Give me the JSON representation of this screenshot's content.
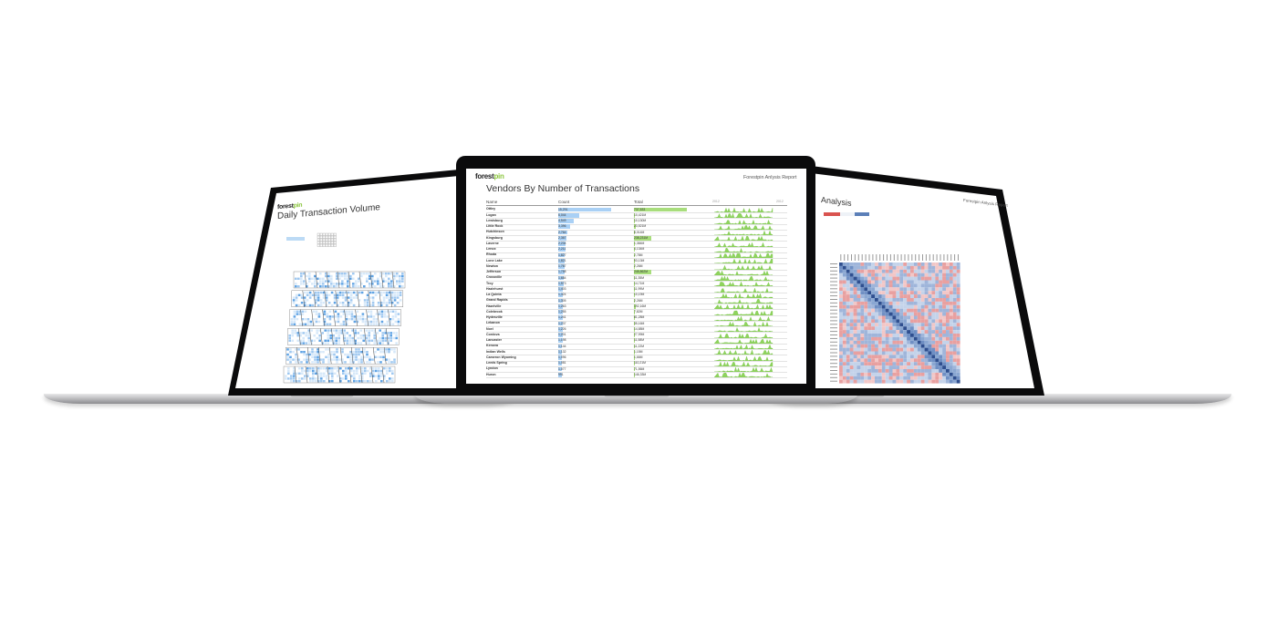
{
  "center": {
    "logo": {
      "part1": "forest",
      "part2": "pin"
    },
    "title": "Vendors By Number of Transactions",
    "report_label": "Forestpin Anlysis Report",
    "columns": {
      "name": "Name",
      "count": "Count",
      "total": "Total"
    },
    "spark_range": {
      "start": "2012",
      "end": "2012"
    },
    "rows": [
      {
        "name": "Ottley",
        "count": "15,291",
        "total": "737,533",
        "count_frac": 0.97,
        "total_frac": 0.04
      },
      {
        "name": "Logan",
        "count": "6,044",
        "total": "10,421M",
        "count_frac": 0.38,
        "total_frac": 0.03
      },
      {
        "name": "Lewisburg",
        "count": "4,549",
        "total": "10,130M",
        "count_frac": 0.28,
        "total_frac": 0.03
      },
      {
        "name": "Little Rock",
        "count": "3,396",
        "total": "23,521M",
        "count_frac": 0.2,
        "total_frac": 0.03
      },
      {
        "name": "Hutchinson",
        "count": "2,764",
        "total": "8,014M",
        "count_frac": 0.0,
        "total_frac": 0.0
      },
      {
        "name": "Kingsburg",
        "count": "2,367",
        "total": "238,231M",
        "count_frac": 0.0,
        "total_frac": 0.0
      },
      {
        "name": "Laverne",
        "count": "2,234",
        "total": "1,384M",
        "count_frac": 0.0,
        "total_frac": 0.0
      },
      {
        "name": "Lenox",
        "count": "2,211",
        "total": "4,134M",
        "count_frac": 0.0,
        "total_frac": 0.0
      },
      {
        "name": "Rhoda",
        "count": "1,827",
        "total": "2,78M",
        "count_frac": 0.0,
        "total_frac": 0.0
      },
      {
        "name": "Lone Lake",
        "count": "1,821",
        "total": "93,13M",
        "count_frac": 0.0,
        "total_frac": 0.0
      },
      {
        "name": "Newton",
        "count": "1,767",
        "total": "2,26M",
        "count_frac": 0.0,
        "total_frac": 0.0
      },
      {
        "name": "Jefferson",
        "count": "1,758",
        "total": "245,862M",
        "count_frac": 0.0,
        "total_frac": 0.0
      },
      {
        "name": "Crossville",
        "count": "1,684",
        "total": "11,35M",
        "count_frac": 0.0,
        "total_frac": 0.0
      },
      {
        "name": "Troy",
        "count": "1,573",
        "total": "14,71M",
        "count_frac": 0.0,
        "total_frac": 0.0
      },
      {
        "name": "Hazlehurst",
        "count": "1,403",
        "total": "11,99M",
        "count_frac": 0.0,
        "total_frac": 0.0
      },
      {
        "name": "La Quinta",
        "count": "1,324",
        "total": "10,19M",
        "count_frac": 0.0,
        "total_frac": 0.0
      },
      {
        "name": "Grand Rapids",
        "count": "1,305",
        "total": "2,26M",
        "count_frac": 0.0,
        "total_frac": 0.0
      },
      {
        "name": "Hazelville",
        "count": "1,263",
        "total": "192,16M",
        "count_frac": 0.0,
        "total_frac": 0.0
      },
      {
        "name": "Colebrook",
        "count": "1,255",
        "total": "7,82M",
        "count_frac": 0.0,
        "total_frac": 0.0
      },
      {
        "name": "Hydesville",
        "count": "1,241",
        "total": "81,28M",
        "count_frac": 0.0,
        "total_frac": 0.0
      },
      {
        "name": "Lebanon",
        "count": "1,237",
        "total": "35,16M",
        "count_frac": 0.0,
        "total_frac": 0.0
      },
      {
        "name": "Noel",
        "count": "1,226",
        "total": "14,88M",
        "count_frac": 0.0,
        "total_frac": 0.0
      },
      {
        "name": "Cordova",
        "count": "1,201",
        "total": "27,99M",
        "count_frac": 0.0,
        "total_frac": 0.0
      },
      {
        "name": "Lancaster",
        "count": "1,198",
        "total": "11,58M",
        "count_frac": 0.0,
        "total_frac": 0.0
      },
      {
        "name": "Kenova",
        "count": "1,144",
        "total": "11,22M",
        "count_frac": 0.0,
        "total_frac": 0.0
      },
      {
        "name": "Indian Wells",
        "count": "1,132",
        "total": "1,15M",
        "count_frac": 0.0,
        "total_frac": 0.0
      },
      {
        "name": "Cameron Wyoming",
        "count": "1,096",
        "total": "1,66M",
        "count_frac": 0.0,
        "total_frac": 0.0
      },
      {
        "name": "Leeds Spring",
        "count": "1,081",
        "total": "110,21M",
        "count_frac": 0.0,
        "total_frac": 0.0
      },
      {
        "name": "Lyndon",
        "count": "1,077",
        "total": "71,56M",
        "count_frac": 0.0,
        "total_frac": 0.0
      },
      {
        "name": "Huron",
        "count": "991",
        "total": "146,33M",
        "count_frac": 0.0,
        "total_frac": 0.0
      }
    ],
    "accent_count": "#a9d0f5",
    "accent_total": "#a8dd7c"
  },
  "left": {
    "logo": {
      "part1": "forest",
      "part2": "pin"
    },
    "title": "Daily Transaction Volume"
  },
  "right": {
    "title": "Analysis",
    "report_label": "Forestpin Anlysis Report"
  }
}
